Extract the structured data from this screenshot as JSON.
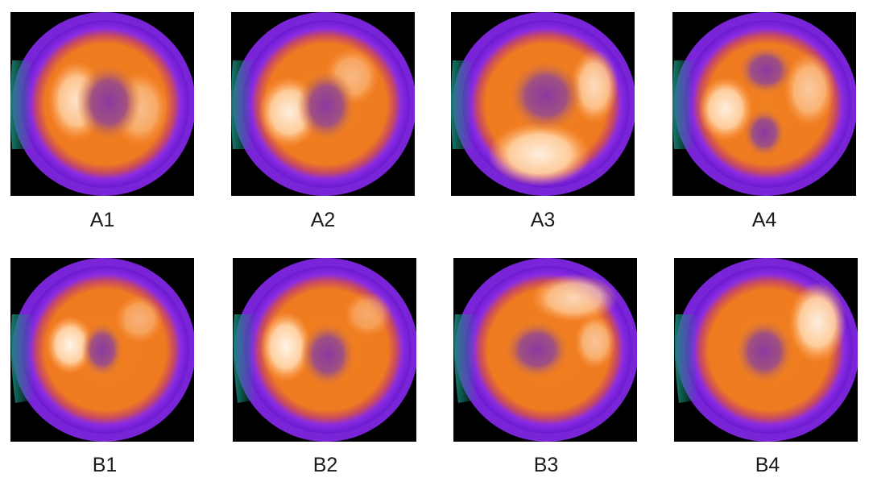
{
  "panels": [
    {
      "label": "A1"
    },
    {
      "label": "A2"
    },
    {
      "label": "A3"
    },
    {
      "label": "A4"
    },
    {
      "label": "B1"
    },
    {
      "label": "B2"
    },
    {
      "label": "B3"
    },
    {
      "label": "B4"
    }
  ],
  "colors": {
    "background": "#000000",
    "outer_teal": "#1a8a7a",
    "purple": "#8a2be2",
    "violet": "#9b30ff",
    "orange": "#f08020",
    "light_orange": "#ffb060",
    "hot_white": "#fff0e0",
    "center_purple": "#8a3aa0"
  }
}
